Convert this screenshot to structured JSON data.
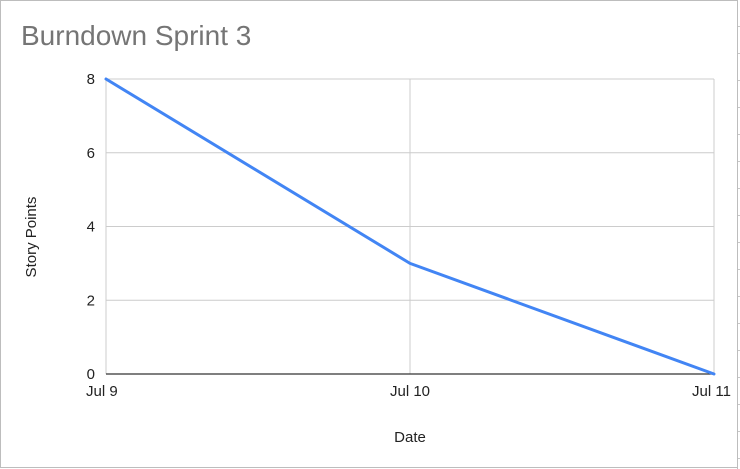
{
  "chart_data": {
    "type": "line",
    "title": "Burndown Sprint 3",
    "xlabel": "Date",
    "ylabel": "Story Points",
    "categories": [
      "Jul 9",
      "Jul 10",
      "Jul 11"
    ],
    "series": [
      {
        "values": [
          8,
          3,
          0
        ],
        "color": "#4285f4"
      }
    ],
    "ylim": [
      0,
      8
    ],
    "yticks": [
      0,
      2,
      4,
      6,
      8
    ],
    "grid": true,
    "legend": "none"
  }
}
